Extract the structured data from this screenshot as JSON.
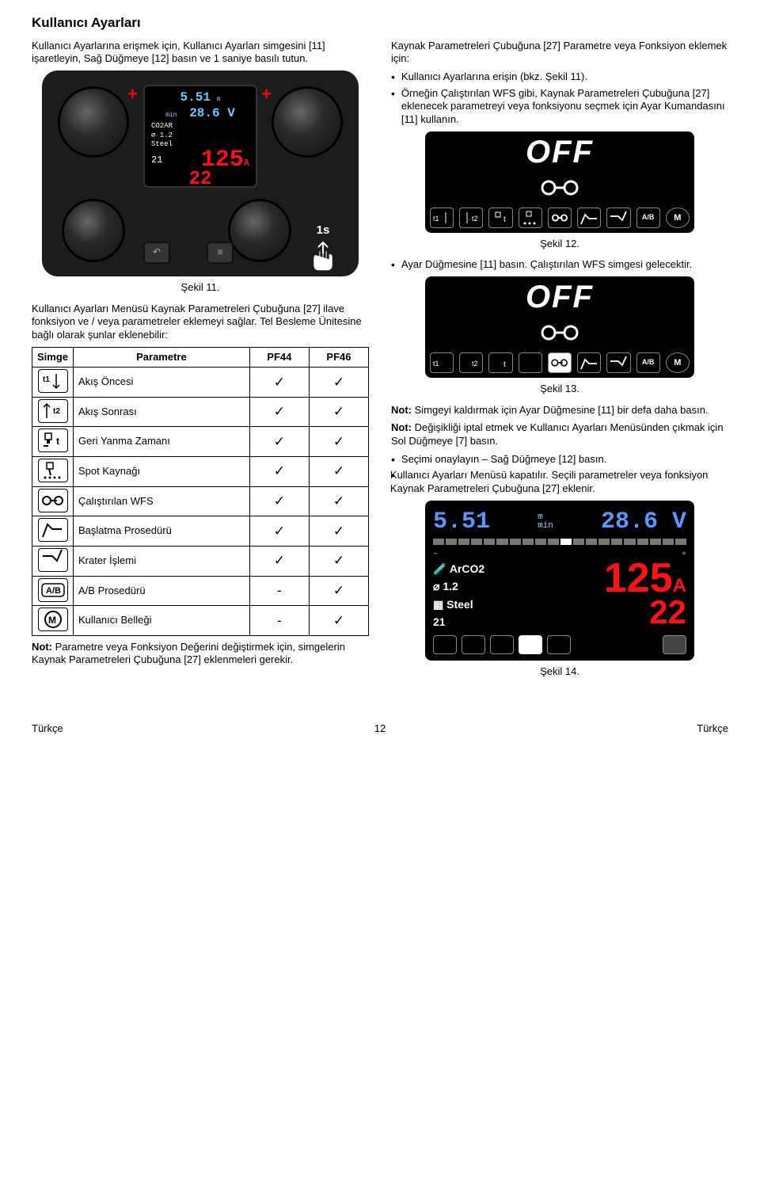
{
  "title": "Kullanıcı Ayarları",
  "left_intro": "Kullanıcı Ayarlarına erişmek için, Kullanıcı Ayarları simgesini [11] işaretleyin, Sağ Düğmeye [12] basın ve 1 saniye basılı tutun.",
  "panel11": {
    "wfs": "5.51",
    "unit": "m\nmin",
    "volt": "28.6 V",
    "gas": "CO2AR",
    "dia": "1.2",
    "mat": "Steel",
    "prog": "21",
    "amp": "125",
    "amp2": "22",
    "hold_s": "1s"
  },
  "fig11": "Şekil 11.",
  "left_p2": "Kullanıcı Ayarları Menüsü Kaynak Parametreleri Çubuğuna [27] ilave fonksiyon ve / veya parametreler eklemeyi sağlar. Tel Besleme Ünitesine bağlı olarak şunlar eklenebilir:",
  "table": {
    "h1": "Simge",
    "h2": "Parametre",
    "h3": "PF44",
    "h4": "PF46",
    "rows": [
      {
        "icon": "t1",
        "label": "Akış Öncesi",
        "pf44": "✓",
        "pf46": "✓"
      },
      {
        "icon": "t2",
        "label": "Akış Sonrası",
        "pf44": "✓",
        "pf46": "✓"
      },
      {
        "icon": "burnback",
        "label": "Geri Yanma Zamanı",
        "pf44": "✓",
        "pf46": "✓"
      },
      {
        "icon": "spot",
        "label": "Spot Kaynağı",
        "pf44": "✓",
        "pf46": "✓"
      },
      {
        "icon": "runin",
        "label": "Çalıştırılan WFS",
        "pf44": "✓",
        "pf46": "✓"
      },
      {
        "icon": "start",
        "label": "Başlatma Prosedürü",
        "pf44": "✓",
        "pf46": "✓"
      },
      {
        "icon": "crater",
        "label": "Krater İşlemi",
        "pf44": "✓",
        "pf46": "✓"
      },
      {
        "icon": "ab",
        "label": "A/B Prosedürü",
        "pf44": "-",
        "pf46": "✓"
      },
      {
        "icon": "mem",
        "label": "Kullanıcı Belleği",
        "pf44": "-",
        "pf46": "✓"
      }
    ]
  },
  "left_note": "Not: Parametre veya Fonksiyon Değerini değiştirmek için, simgelerin Kaynak Parametreleri Çubuğuna [27] eklenmeleri gerekir.",
  "right_p1": "Kaynak Parametreleri Çubuğuna [27] Parametre veya Fonksiyon eklemek için:",
  "right_b1": "Kullanıcı Ayarlarına erişin (bkz. Şekil 11).",
  "right_b2": "Örneğin Çalıştırılan WFS gibi, Kaynak Parametreleri Çubuğuna [27] eklenecek parametreyi veya fonksiyonu seçmek için Ayar Kumandasını [11] kullanın.",
  "off_label": "OFF",
  "fig12": "Şekil 12.",
  "right_b3": "Ayar Düğmesine [11] basın. Çalıştırılan WFS simgesi gelecektir.",
  "fig13": "Şekil 13.",
  "right_n1_b": "Not:",
  "right_n1": " Simgeyi kaldırmak için Ayar Düğmesine [11] bir defa daha basın.",
  "right_n2_b": "Not:",
  "right_n2": " Değişikliği iptal etmek ve Kullanıcı Ayarları Menüsünden çıkmak için Sol Düğmeye [7] basın.",
  "right_b4a": "Seçimi onaylayın – Sağ Düğmeye [12] basın.",
  "right_b4b": "Kullanıcı Ayarları Menüsü kapatılır. Seçili parametreler veya fonksiyon Kaynak Parametreleri Çubuğuna [27] eklenir.",
  "biglcd": {
    "wfs": "5.51",
    "unit": "m\nmin",
    "volt": "28.6 V",
    "gas": "ArCO2",
    "dia": "1.2",
    "mat": "Steel",
    "prog": "21",
    "amp": "125",
    "amp_unit": "A",
    "amp2": "22"
  },
  "fig14": "Şekil 14.",
  "footer_l": "Türkçe",
  "footer_c": "12",
  "footer_r": "Türkçe"
}
